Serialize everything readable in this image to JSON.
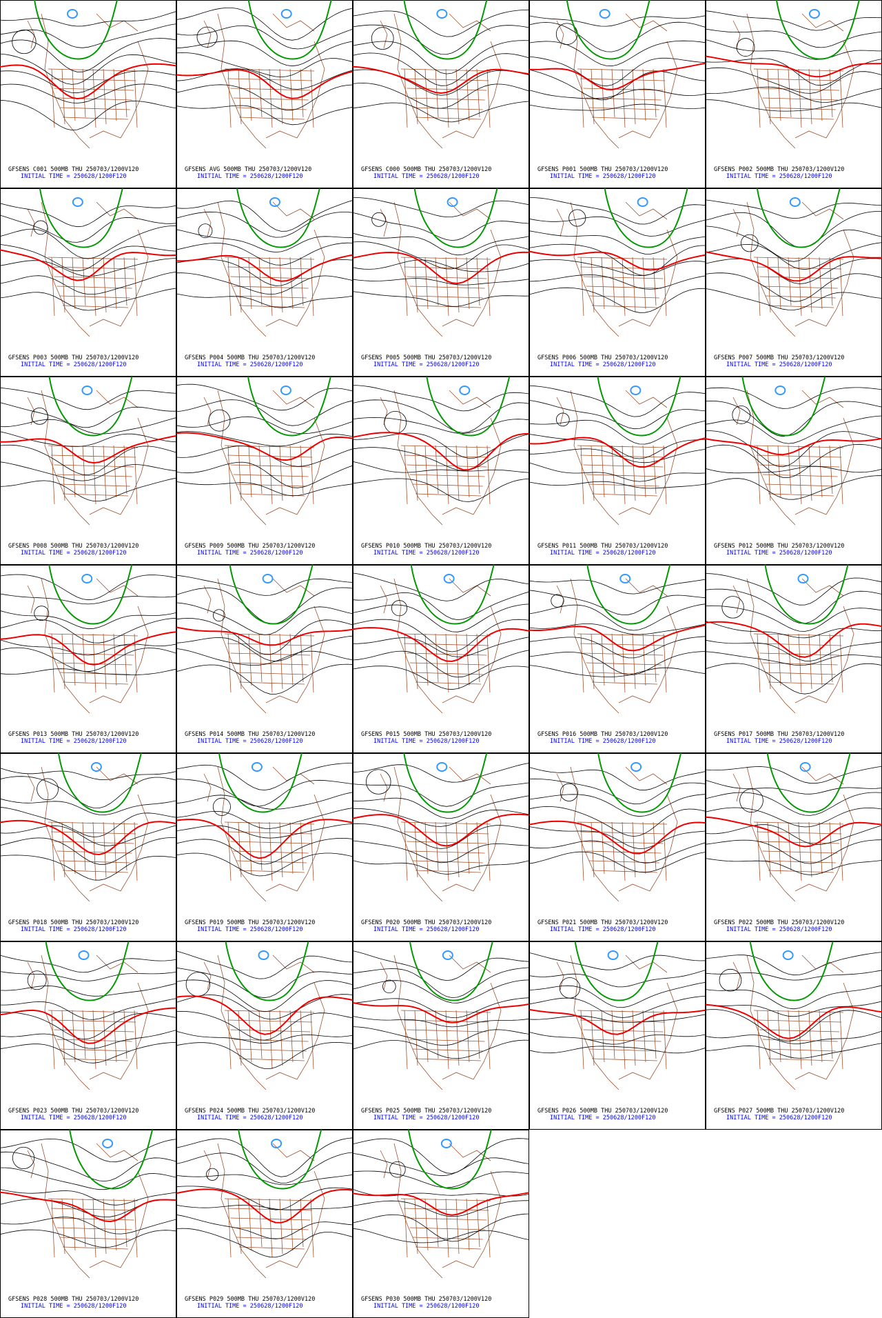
{
  "panels": [
    {
      "label": "GFSENS C001 500MB THU 250703/1200V120",
      "init": "INITIAL TIME = 250628/1200F120"
    },
    {
      "label": "GFSENS AVG 500MB THU 250703/1200V120",
      "init": "INITIAL TIME = 250628/1200F120"
    },
    {
      "label": "GFSENS C000 500MB THU 250703/1200V120",
      "init": "INITIAL TIME = 250628/1200F120"
    },
    {
      "label": "GFSENS P001 500MB THU 250703/1200V120",
      "init": "INITIAL TIME = 250628/1200F120"
    },
    {
      "label": "GFSENS P002 500MB THU 250703/1200V120",
      "init": "INITIAL TIME = 250628/1200F120"
    },
    {
      "label": "GFSENS P003 500MB THU 250703/1200V120",
      "init": "INITIAL TIME = 250628/1200F120"
    },
    {
      "label": "GFSENS P004 500MB THU 250703/1200V120",
      "init": "INITIAL TIME = 250628/1200F120"
    },
    {
      "label": "GFSENS P005 500MB THU 250703/1200V120",
      "init": "INITIAL TIME = 250628/1200F120"
    },
    {
      "label": "GFSENS P006 500MB THU 250703/1200V120",
      "init": "INITIAL TIME = 250628/1200F120"
    },
    {
      "label": "GFSENS P007 500MB THU 250703/1200V120",
      "init": "INITIAL TIME = 250628/1200F120"
    },
    {
      "label": "GFSENS P008 500MB THU 250703/1200V120",
      "init": "INITIAL TIME = 250628/1200F120"
    },
    {
      "label": "GFSENS P009 500MB THU 250703/1200V120",
      "init": "INITIAL TIME = 250628/1200F120"
    },
    {
      "label": "GFSENS P010 500MB THU 250703/1200V120",
      "init": "INITIAL TIME = 250628/1200F120"
    },
    {
      "label": "GFSENS P011 500MB THU 250703/1200V120",
      "init": "INITIAL TIME = 250628/1200F120"
    },
    {
      "label": "GFSENS P012 500MB THU 250703/1200V120",
      "init": "INITIAL TIME = 250628/1200F120"
    },
    {
      "label": "GFSENS P013 500MB THU 250703/1200V120",
      "init": "INITIAL TIME = 250628/1200F120"
    },
    {
      "label": "GFSENS P014 500MB THU 250703/1200V120",
      "init": "INITIAL TIME = 250628/1200F120"
    },
    {
      "label": "GFSENS P015 500MB THU 250703/1200V120",
      "init": "INITIAL TIME = 250628/1200F120"
    },
    {
      "label": "GFSENS P016 500MB THU 250703/1200V120",
      "init": "INITIAL TIME = 250628/1200F120"
    },
    {
      "label": "GFSENS P017 500MB THU 250703/1200V120",
      "init": "INITIAL TIME = 250628/1200F120"
    },
    {
      "label": "GFSENS P018 500MB THU 250703/1200V120",
      "init": "INITIAL TIME = 250628/1200F120"
    },
    {
      "label": "GFSENS P019 500MB THU 250703/1200V120",
      "init": "INITIAL TIME = 250628/1200F120"
    },
    {
      "label": "GFSENS P020 500MB THU 250703/1200V120",
      "init": "INITIAL TIME = 250628/1200F120"
    },
    {
      "label": "GFSENS P021 500MB THU 250703/1200V120",
      "init": "INITIAL TIME = 250628/1200F120"
    },
    {
      "label": "GFSENS P022 500MB THU 250703/1200V120",
      "init": "INITIAL TIME = 250628/1200F120"
    },
    {
      "label": "GFSENS P023 500MB THU 250703/1200V120",
      "init": "INITIAL TIME = 250628/1200F120"
    },
    {
      "label": "GFSENS P024 500MB THU 250703/1200V120",
      "init": "INITIAL TIME = 250628/1200F120"
    },
    {
      "label": "GFSENS P025 500MB THU 250703/1200V120",
      "init": "INITIAL TIME = 250628/1200F120"
    },
    {
      "label": "GFSENS P026 500MB THU 250703/1200V120",
      "init": "INITIAL TIME = 250628/1200F120"
    },
    {
      "label": "GFSENS P027 500MB THU 250703/1200V120",
      "init": "INITIAL TIME = 250628/1200F120"
    },
    {
      "label": "GFSENS P028 500MB THU 250703/1200V120",
      "init": "INITIAL TIME = 250628/1200F120"
    },
    {
      "label": "GFSENS P029 500MB THU 250703/1200V120",
      "init": "INITIAL TIME = 250628/1200F120"
    },
    {
      "label": "GFSENS P030 500MB THU 250703/1200V120",
      "init": "INITIAL TIME = 250628/1200F120"
    }
  ]
}
